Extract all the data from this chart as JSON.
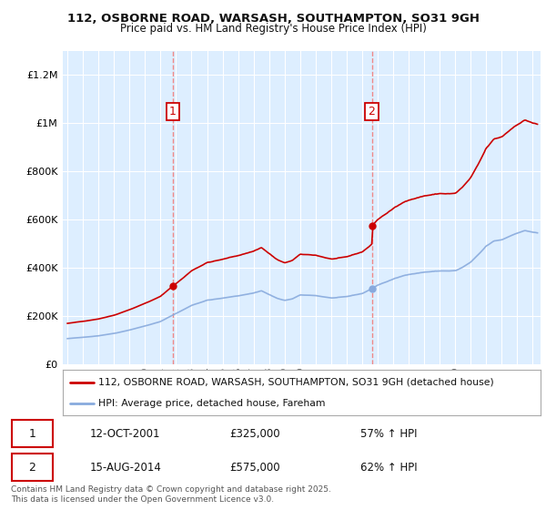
{
  "title1": "112, OSBORNE ROAD, WARSASH, SOUTHAMPTON, SO31 9GH",
  "title2": "Price paid vs. HM Land Registry's House Price Index (HPI)",
  "ytick_vals": [
    0,
    200000,
    400000,
    600000,
    800000,
    1000000,
    1200000
  ],
  "ylim": [
    0,
    1300000
  ],
  "xlim_start": 1994.7,
  "xlim_end": 2025.5,
  "purchase1_x": 2001.78,
  "purchase1_price": 325000,
  "purchase2_x": 2014.62,
  "purchase2_price": 575000,
  "legend_line1": "112, OSBORNE ROAD, WARSASH, SOUTHAMPTON, SO31 9GH (detached house)",
  "legend_line2": "HPI: Average price, detached house, Fareham",
  "footer": "Contains HM Land Registry data © Crown copyright and database right 2025.\nThis data is licensed under the Open Government Licence v3.0.",
  "line_color_red": "#cc0000",
  "line_color_blue": "#88aadd",
  "vline_color": "#ee8888",
  "plot_bg": "#ddeeff",
  "grid_color": "#ffffff",
  "table_row1": [
    "1",
    "12-OCT-2001",
    "£325,000",
    "57% ↑ HPI"
  ],
  "table_row2": [
    "2",
    "15-AUG-2014",
    "£575,000",
    "62% ↑ HPI"
  ]
}
